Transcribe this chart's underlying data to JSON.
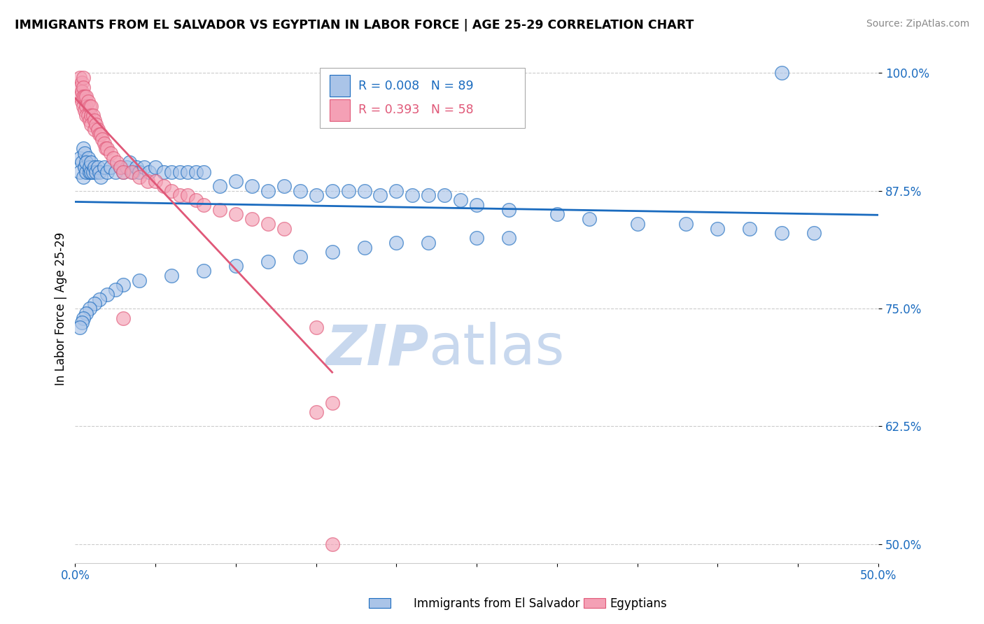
{
  "title": "IMMIGRANTS FROM EL SALVADOR VS EGYPTIAN IN LABOR FORCE | AGE 25-29 CORRELATION CHART",
  "source_text": "Source: ZipAtlas.com",
  "ylabel": "In Labor Force | Age 25-29",
  "legend_labels": [
    "Immigrants from El Salvador",
    "Egyptians"
  ],
  "r_salvador": 0.008,
  "n_salvador": 89,
  "r_egyptian": 0.393,
  "n_egyptian": 58,
  "xlim": [
    0.0,
    0.5
  ],
  "ylim": [
    0.48,
    1.02
  ],
  "yticks": [
    0.5,
    0.625,
    0.75,
    0.875,
    1.0
  ],
  "ytick_labels": [
    "50.0%",
    "62.5%",
    "75.0%",
    "87.5%",
    "100.0%"
  ],
  "color_salvador": "#aac4e8",
  "color_egyptian": "#f4a0b5",
  "line_color_salvador": "#1a6bbf",
  "line_color_egyptian": "#e05878",
  "watermark_zip": "ZIP",
  "watermark_atlas": "atlas",
  "watermark_color": "#c8d8ee",
  "salvador_x": [
    0.003,
    0.003,
    0.004,
    0.004,
    0.005,
    0.005,
    0.005,
    0.005,
    0.005,
    0.006,
    0.006,
    0.007,
    0.007,
    0.008,
    0.008,
    0.008,
    0.009,
    0.009,
    0.01,
    0.01,
    0.01,
    0.011,
    0.011,
    0.012,
    0.012,
    0.013,
    0.013,
    0.014,
    0.015,
    0.015,
    0.016,
    0.017,
    0.018,
    0.019,
    0.02,
    0.021,
    0.022,
    0.023,
    0.024,
    0.025,
    0.026,
    0.027,
    0.028,
    0.03,
    0.03,
    0.032,
    0.034,
    0.036,
    0.038,
    0.04,
    0.042,
    0.044,
    0.046,
    0.048,
    0.05,
    0.055,
    0.06,
    0.065,
    0.07,
    0.075,
    0.08,
    0.085,
    0.09,
    0.1,
    0.11,
    0.12,
    0.13,
    0.14,
    0.15,
    0.16,
    0.17,
    0.18,
    0.19,
    0.2,
    0.22,
    0.24,
    0.26,
    0.28,
    0.3,
    0.32,
    0.34,
    0.36,
    0.38,
    0.4,
    0.42,
    0.44,
    0.46,
    0.46,
    0.44
  ],
  "salvador_y": [
    0.875,
    0.875,
    0.875,
    0.875,
    0.875,
    0.875,
    0.875,
    0.875,
    0.875,
    0.875,
    0.875,
    0.875,
    0.875,
    0.875,
    0.875,
    0.875,
    0.875,
    0.875,
    0.875,
    0.875,
    0.875,
    0.875,
    0.875,
    0.875,
    0.875,
    0.875,
    0.875,
    0.875,
    0.875,
    0.875,
    0.875,
    0.875,
    0.875,
    0.875,
    0.875,
    0.875,
    0.875,
    0.875,
    0.875,
    0.875,
    0.875,
    0.875,
    0.875,
    0.875,
    0.875,
    0.875,
    0.875,
    0.875,
    0.875,
    0.875,
    0.875,
    0.875,
    0.875,
    0.875,
    0.875,
    0.875,
    0.875,
    0.875,
    0.875,
    0.875,
    0.875,
    0.875,
    0.875,
    0.875,
    0.875,
    0.875,
    0.875,
    0.875,
    0.875,
    0.875,
    0.875,
    0.875,
    0.875,
    0.875,
    0.875,
    0.875,
    0.875,
    0.875,
    0.875,
    0.875,
    0.875,
    0.875,
    0.875,
    0.875,
    0.875,
    0.875,
    0.875,
    0.875,
    1.0
  ],
  "salvador_x_spread": [
    0.003,
    0.004,
    0.005,
    0.006,
    0.003,
    0.005,
    0.006,
    0.007,
    0.008,
    0.007,
    0.009,
    0.009,
    0.01,
    0.01,
    0.011,
    0.012,
    0.013,
    0.014,
    0.015,
    0.016,
    0.018,
    0.02,
    0.022,
    0.025,
    0.028,
    0.03,
    0.032,
    0.034,
    0.036,
    0.038,
    0.04,
    0.043,
    0.046,
    0.05,
    0.055,
    0.06,
    0.065,
    0.07,
    0.075,
    0.08,
    0.09,
    0.1,
    0.11,
    0.12,
    0.13,
    0.14,
    0.15,
    0.16,
    0.17,
    0.18,
    0.19,
    0.2,
    0.21,
    0.22,
    0.23,
    0.24,
    0.25,
    0.27,
    0.3,
    0.32,
    0.35,
    0.38,
    0.4,
    0.42,
    0.44,
    0.46,
    0.25,
    0.27,
    0.22,
    0.2,
    0.18,
    0.16,
    0.14,
    0.12,
    0.1,
    0.08,
    0.06,
    0.04,
    0.03,
    0.025,
    0.02,
    0.015,
    0.012,
    0.009,
    0.007,
    0.005,
    0.004,
    0.003,
    0.44
  ],
  "salvador_y_spread": [
    0.91,
    0.905,
    0.92,
    0.915,
    0.895,
    0.89,
    0.9,
    0.895,
    0.91,
    0.905,
    0.895,
    0.9,
    0.895,
    0.905,
    0.895,
    0.9,
    0.895,
    0.9,
    0.895,
    0.89,
    0.9,
    0.895,
    0.9,
    0.895,
    0.9,
    0.895,
    0.9,
    0.905,
    0.895,
    0.9,
    0.895,
    0.9,
    0.895,
    0.9,
    0.895,
    0.895,
    0.895,
    0.895,
    0.895,
    0.895,
    0.88,
    0.885,
    0.88,
    0.875,
    0.88,
    0.875,
    0.87,
    0.875,
    0.875,
    0.875,
    0.87,
    0.875,
    0.87,
    0.87,
    0.87,
    0.865,
    0.86,
    0.855,
    0.85,
    0.845,
    0.84,
    0.84,
    0.835,
    0.835,
    0.83,
    0.83,
    0.825,
    0.825,
    0.82,
    0.82,
    0.815,
    0.81,
    0.805,
    0.8,
    0.795,
    0.79,
    0.785,
    0.78,
    0.775,
    0.77,
    0.765,
    0.76,
    0.755,
    0.75,
    0.745,
    0.74,
    0.735,
    0.73,
    1.0
  ],
  "egyptian_x": [
    0.003,
    0.003,
    0.003,
    0.004,
    0.004,
    0.004,
    0.005,
    0.005,
    0.005,
    0.005,
    0.006,
    0.006,
    0.007,
    0.007,
    0.007,
    0.008,
    0.008,
    0.009,
    0.009,
    0.01,
    0.01,
    0.01,
    0.011,
    0.012,
    0.012,
    0.013,
    0.014,
    0.015,
    0.016,
    0.017,
    0.018,
    0.019,
    0.02,
    0.022,
    0.024,
    0.026,
    0.028,
    0.03,
    0.035,
    0.04,
    0.045,
    0.05,
    0.055,
    0.06,
    0.065,
    0.07,
    0.075,
    0.08,
    0.09,
    0.1,
    0.11,
    0.12,
    0.13,
    0.03,
    0.15,
    0.16,
    0.15,
    0.16
  ],
  "egyptian_y": [
    0.995,
    0.985,
    0.975,
    0.99,
    0.98,
    0.97,
    0.995,
    0.985,
    0.975,
    0.965,
    0.975,
    0.96,
    0.975,
    0.965,
    0.955,
    0.97,
    0.955,
    0.965,
    0.95,
    0.965,
    0.955,
    0.945,
    0.955,
    0.95,
    0.94,
    0.945,
    0.94,
    0.935,
    0.935,
    0.93,
    0.925,
    0.92,
    0.92,
    0.915,
    0.91,
    0.905,
    0.9,
    0.895,
    0.895,
    0.89,
    0.885,
    0.885,
    0.88,
    0.875,
    0.87,
    0.87,
    0.865,
    0.86,
    0.855,
    0.85,
    0.845,
    0.84,
    0.835,
    0.74,
    0.64,
    0.65,
    0.73,
    0.5
  ]
}
